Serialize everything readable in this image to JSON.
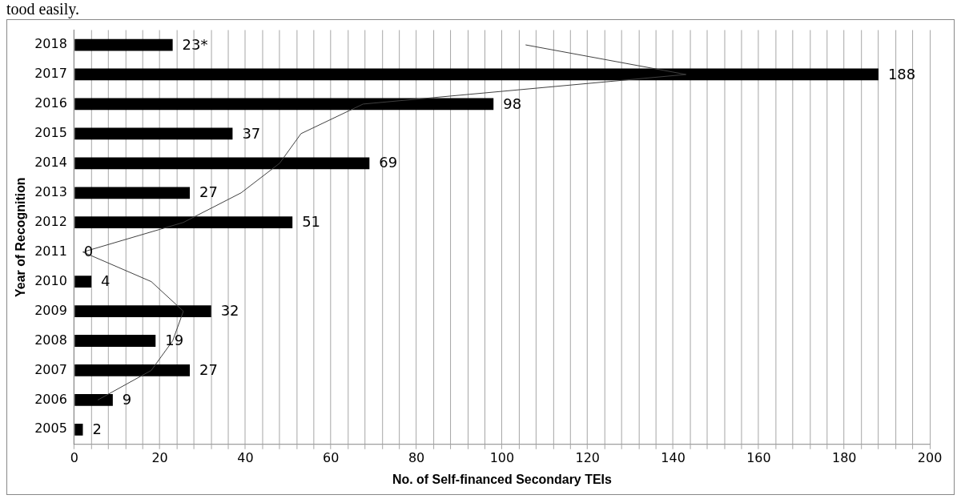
{
  "chart_data": {
    "type": "bar",
    "orientation": "horizontal",
    "categories": [
      "2018",
      "2017",
      "2016",
      "2015",
      "2014",
      "2013",
      "2012",
      "2011",
      "2010",
      "2009",
      "2008",
      "2007",
      "2006",
      "2005"
    ],
    "series": [
      {
        "color": "#000000",
        "values": [
          23,
          188,
          98,
          37,
          69,
          27,
          51,
          0,
          4,
          32,
          19,
          27,
          9,
          2
        ],
        "value_labels": [
          "23*",
          "188",
          "98",
          "37",
          "69",
          "27",
          "51",
          "0",
          "4",
          "32",
          "19",
          "27",
          "9",
          "2"
        ]
      },
      {
        "type": "line",
        "color": "#404040",
        "values": [
          105.5,
          143,
          67.5,
          53,
          48,
          39,
          25.5,
          2,
          18,
          25.5,
          23,
          18,
          5.5,
          null
        ]
      }
    ],
    "xlabel": "No. of Self-financed Secondary TEIs",
    "ylabel": "Year of Recognition",
    "xlim": [
      0,
      200
    ],
    "xticks": [
      0,
      {
        "value": 4,
        "label": null
      },
      {
        "value": 8,
        "label": null
      },
      {
        "value": 12,
        "label": null
      },
      {
        "value": 16,
        "label": null
      },
      20,
      {
        "value": 24,
        "label": null
      },
      {
        "value": 28,
        "label": null
      },
      {
        "value": 32,
        "label": null
      },
      {
        "value": 36,
        "label": null
      },
      40,
      {
        "value": 44,
        "label": null
      },
      {
        "value": 48,
        "label": null
      },
      {
        "value": 52,
        "label": null
      },
      {
        "value": 56,
        "label": null
      },
      60,
      {
        "value": 64,
        "label": null
      },
      {
        "value": 68,
        "label": null
      },
      {
        "value": 72,
        "label": null
      },
      {
        "value": 76,
        "label": null
      },
      80,
      {
        "value": 84,
        "label": null
      },
      {
        "value": 88,
        "label": null
      },
      {
        "value": 92,
        "label": null
      },
      {
        "value": 96,
        "label": null
      },
      100,
      {
        "value": 104,
        "label": null
      },
      {
        "value": 108,
        "label": null
      },
      {
        "value": 112,
        "label": null
      },
      {
        "value": 116,
        "label": null
      },
      120,
      {
        "value": 124,
        "label": null
      },
      {
        "value": 128,
        "label": null
      },
      {
        "value": 132,
        "label": null
      },
      {
        "value": 136,
        "label": null
      },
      140,
      {
        "value": 144,
        "label": null
      },
      {
        "value": 148,
        "label": null
      },
      {
        "value": 152,
        "label": null
      },
      {
        "value": 156,
        "label": null
      },
      160,
      {
        "value": 164,
        "label": null
      },
      {
        "value": 168,
        "label": null
      },
      {
        "value": 172,
        "label": null
      },
      {
        "value": 176,
        "label": null
      },
      180,
      {
        "value": 184,
        "label": null
      },
      {
        "value": 188,
        "label": null
      },
      {
        "value": 192,
        "label": null
      },
      {
        "value": 196,
        "label": null
      },
      200
    ],
    "grid": "x",
    "legend": false,
    "marker": "none",
    "line_style": "solid",
    "annotations": [
      "tood easily."
    ]
  }
}
